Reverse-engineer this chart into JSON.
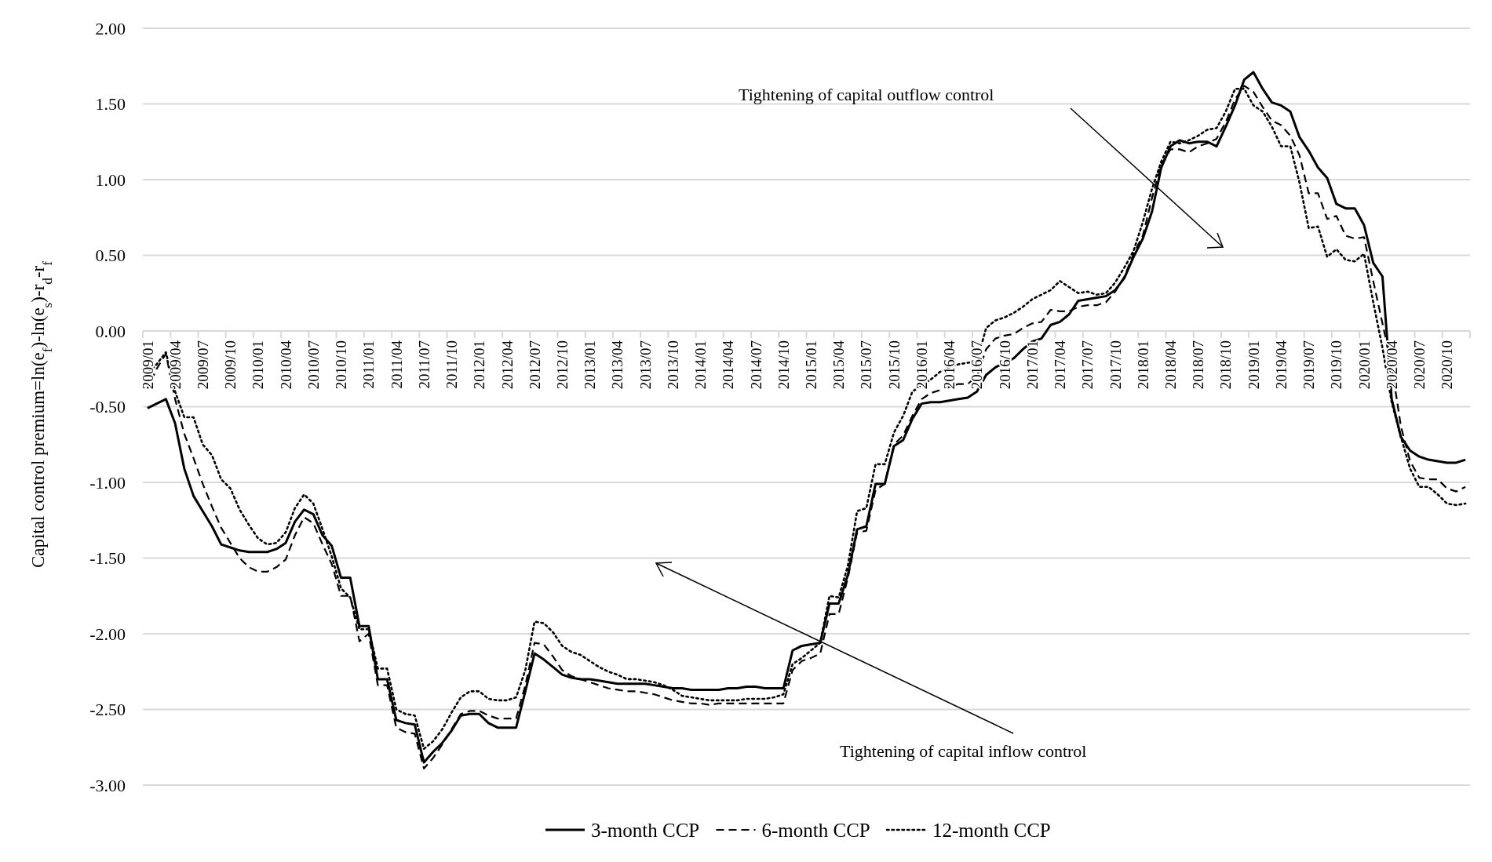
{
  "chart_data": {
    "type": "line",
    "ylabel": "Capital control premium=ln(e$_{f}$)-ln(e$_{s}$)-r$_{d}$-r$_{f}$",
    "categories": [
      "2009/01",
      null,
      null,
      "2009/04",
      null,
      null,
      "2009/07",
      null,
      null,
      "2009/10",
      null,
      null,
      "2010/01",
      null,
      null,
      "2010/04",
      null,
      null,
      "2010/07",
      null,
      null,
      "2010/10",
      null,
      null,
      "2011/01",
      null,
      null,
      "2011/04",
      null,
      null,
      "2011/07",
      null,
      null,
      "2011/10",
      null,
      null,
      "2012/01",
      null,
      null,
      "2012/04",
      null,
      null,
      "2012/07",
      null,
      null,
      "2012/10",
      null,
      null,
      "2013/01",
      null,
      null,
      "2013/04",
      null,
      null,
      "2013/07",
      null,
      null,
      "2013/10",
      null,
      null,
      "2014/01",
      null,
      null,
      "2014/04",
      null,
      null,
      "2014/07",
      null,
      null,
      "2014/10",
      null,
      null,
      "2015/01",
      null,
      null,
      "2015/04",
      null,
      null,
      "2015/07",
      null,
      null,
      "2015/10",
      null,
      null,
      "2016/01",
      null,
      null,
      "2016/04",
      null,
      null,
      "2016/07",
      null,
      null,
      "2016/10",
      null,
      null,
      "2017/01",
      null,
      null,
      "2017/04",
      null,
      null,
      "2017/07",
      null,
      null,
      "2017/10",
      null,
      null,
      "2018/01",
      null,
      null,
      "2018/04",
      null,
      null,
      "2018/07",
      null,
      null,
      "2018/10",
      null,
      null,
      "2019/01",
      null,
      null,
      "2019/04",
      null,
      null,
      "2019/07",
      null,
      null,
      "2019/10",
      null,
      null,
      "2020/01",
      null,
      null,
      "2020/04",
      null,
      null,
      "2020/07",
      null,
      null,
      "2020/10",
      null,
      null
    ],
    "series": [
      {
        "name": "3-month CCP",
        "color": "#000000",
        "line_style": "solid",
        "values": [
          -0.51,
          -0.48,
          -0.45,
          -0.61,
          -0.91,
          -1.09,
          -1.19,
          -1.29,
          -1.41,
          -1.43,
          -1.45,
          -1.46,
          -1.46,
          -1.46,
          -1.44,
          -1.4,
          -1.26,
          -1.18,
          -1.21,
          -1.35,
          -1.42,
          -1.63,
          -1.63,
          -1.95,
          -1.95,
          -2.3,
          -2.3,
          -2.57,
          -2.59,
          -2.6,
          -2.85,
          -2.78,
          -2.72,
          -2.64,
          -2.54,
          -2.53,
          -2.53,
          -2.59,
          -2.62,
          -2.62,
          -2.62,
          -2.38,
          -2.13,
          -2.17,
          -2.22,
          -2.27,
          -2.29,
          -2.3,
          -2.3,
          -2.31,
          -2.32,
          -2.33,
          -2.33,
          -2.33,
          -2.33,
          -2.34,
          -2.35,
          -2.36,
          -2.36,
          -2.37,
          -2.37,
          -2.37,
          -2.37,
          -2.36,
          -2.36,
          -2.35,
          -2.35,
          -2.36,
          -2.36,
          -2.36,
          -2.11,
          -2.08,
          -2.07,
          -2.06,
          -1.8,
          -1.8,
          -1.61,
          -1.31,
          -1.29,
          -1.01,
          -1.01,
          -0.76,
          -0.72,
          -0.58,
          -0.48,
          -0.47,
          -0.47,
          -0.46,
          -0.45,
          -0.44,
          -0.4,
          -0.29,
          -0.24,
          -0.21,
          -0.18,
          -0.12,
          -0.07,
          -0.05,
          0.04,
          0.06,
          0.11,
          0.2,
          0.21,
          0.22,
          0.23,
          0.27,
          0.35,
          0.49,
          0.61,
          0.79,
          1.08,
          1.22,
          1.26,
          1.24,
          1.25,
          1.25,
          1.22,
          1.35,
          1.49,
          1.66,
          1.71,
          1.6,
          1.51,
          1.49,
          1.45,
          1.28,
          1.19,
          1.08,
          1.01,
          0.84,
          0.81,
          0.81,
          0.7,
          0.45,
          0.36,
          -0.45,
          -0.7,
          -0.79,
          -0.83,
          -0.85,
          -0.86,
          -0.87,
          -0.87,
          -0.85
        ]
      },
      {
        "name": "6-month CCP",
        "color": "#000000",
        "line_style": "dashed",
        "values": [
          -0.38,
          -0.25,
          -0.15,
          -0.45,
          -0.68,
          -0.84,
          -1.01,
          -1.16,
          -1.3,
          -1.4,
          -1.5,
          -1.56,
          -1.59,
          -1.59,
          -1.56,
          -1.51,
          -1.35,
          -1.23,
          -1.27,
          -1.41,
          -1.54,
          -1.75,
          -1.75,
          -2.05,
          -2.0,
          -2.34,
          -2.34,
          -2.62,
          -2.65,
          -2.66,
          -2.89,
          -2.82,
          -2.73,
          -2.63,
          -2.53,
          -2.51,
          -2.51,
          -2.54,
          -2.56,
          -2.56,
          -2.56,
          -2.34,
          -2.06,
          -2.07,
          -2.15,
          -2.24,
          -2.28,
          -2.3,
          -2.32,
          -2.34,
          -2.36,
          -2.37,
          -2.38,
          -2.38,
          -2.39,
          -2.4,
          -2.42,
          -2.44,
          -2.45,
          -2.46,
          -2.46,
          -2.47,
          -2.46,
          -2.46,
          -2.46,
          -2.46,
          -2.46,
          -2.46,
          -2.46,
          -2.46,
          -2.24,
          -2.18,
          -2.16,
          -2.13,
          -1.87,
          -1.87,
          -1.63,
          -1.33,
          -1.32,
          -1.05,
          -1.01,
          -0.75,
          -0.69,
          -0.56,
          -0.45,
          -0.41,
          -0.39,
          -0.37,
          -0.35,
          -0.35,
          -0.3,
          -0.12,
          -0.05,
          -0.03,
          -0.02,
          0.02,
          0.05,
          0.06,
          0.14,
          0.13,
          0.13,
          0.16,
          0.17,
          0.17,
          0.19,
          0.26,
          0.36,
          0.51,
          0.63,
          0.88,
          1.1,
          1.2,
          1.2,
          1.18,
          1.22,
          1.24,
          1.27,
          1.38,
          1.53,
          1.62,
          1.58,
          1.48,
          1.39,
          1.36,
          1.29,
          1.16,
          0.91,
          0.91,
          0.74,
          0.76,
          0.63,
          0.61,
          0.62,
          0.33,
          0.05,
          -0.23,
          -0.63,
          -0.86,
          -0.97,
          -0.98,
          -0.98,
          -1.04,
          -1.06,
          -1.03
        ]
      },
      {
        "name": "12-month CCP",
        "color": "#000000",
        "line_style": "dotted",
        "values": [
          -0.28,
          -0.22,
          -0.14,
          -0.4,
          -0.57,
          -0.57,
          -0.75,
          -0.82,
          -0.98,
          -1.04,
          -1.18,
          -1.28,
          -1.37,
          -1.41,
          -1.4,
          -1.33,
          -1.17,
          -1.08,
          -1.14,
          -1.31,
          -1.49,
          -1.7,
          -1.76,
          -1.97,
          -1.97,
          -2.23,
          -2.23,
          -2.5,
          -2.53,
          -2.54,
          -2.76,
          -2.71,
          -2.63,
          -2.52,
          -2.42,
          -2.38,
          -2.38,
          -2.43,
          -2.44,
          -2.44,
          -2.42,
          -2.24,
          -1.92,
          -1.93,
          -1.99,
          -2.08,
          -2.12,
          -2.14,
          -2.18,
          -2.22,
          -2.25,
          -2.27,
          -2.3,
          -2.3,
          -2.31,
          -2.32,
          -2.34,
          -2.37,
          -2.41,
          -2.42,
          -2.43,
          -2.44,
          -2.44,
          -2.44,
          -2.44,
          -2.43,
          -2.43,
          -2.43,
          -2.42,
          -2.4,
          -2.2,
          -2.16,
          -2.11,
          -2.06,
          -1.75,
          -1.76,
          -1.55,
          -1.19,
          -1.17,
          -0.88,
          -0.88,
          -0.67,
          -0.56,
          -0.4,
          -0.36,
          -0.32,
          -0.27,
          -0.24,
          -0.22,
          -0.21,
          -0.2,
          0.02,
          0.07,
          0.09,
          0.12,
          0.16,
          0.21,
          0.24,
          0.27,
          0.33,
          0.29,
          0.25,
          0.26,
          0.24,
          0.25,
          0.32,
          0.42,
          0.53,
          0.72,
          0.94,
          1.12,
          1.25,
          1.24,
          1.26,
          1.29,
          1.33,
          1.34,
          1.45,
          1.6,
          1.6,
          1.49,
          1.45,
          1.35,
          1.22,
          1.22,
          0.98,
          0.68,
          0.69,
          0.49,
          0.54,
          0.47,
          0.46,
          0.51,
          0.19,
          -0.11,
          -0.47,
          -0.7,
          -0.91,
          -1.03,
          -1.03,
          -1.08,
          -1.14,
          -1.15,
          -1.14
        ]
      }
    ],
    "ylim": [
      -3,
      2
    ],
    "yticks": [
      {
        "value": -3,
        "label": "-3.00"
      },
      {
        "value": -2.5,
        "label": "-2.50"
      },
      {
        "value": -2,
        "label": "-2.00"
      },
      {
        "value": -1.5,
        "label": "-1.50"
      },
      {
        "value": -1,
        "label": "-1.00"
      },
      {
        "value": -0.5,
        "label": "-0.50"
      },
      {
        "value": 0,
        "label": "0.00"
      },
      {
        "value": 0.5,
        "label": "0.50"
      },
      {
        "value": 1,
        "label": "1.00"
      },
      {
        "value": 1.5,
        "label": "1.50"
      },
      {
        "value": 2,
        "label": "2.00"
      }
    ],
    "grid": "y",
    "legend": "bottom",
    "marker": "none",
    "annotations": [
      "Tightening of capital outflow control",
      "Tightening of capital inflow control"
    ]
  }
}
